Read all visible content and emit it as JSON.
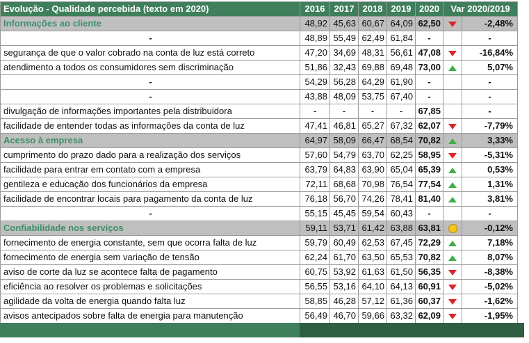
{
  "header": {
    "title": "Evolução - Qualidade percebida (texto em 2020)",
    "years": [
      "2016",
      "2017",
      "2018",
      "2019",
      "2020"
    ],
    "var_label": "Var 2020/2019"
  },
  "rows": [
    {
      "label": "Informações ao cliente",
      "v2016": "48,92",
      "v2017": "45,63",
      "v2018": "60,67",
      "v2019": "64,09",
      "v2020": "62,50",
      "ind": "down",
      "var": "-2,48%",
      "section": true
    },
    {
      "label": "-",
      "v2016": "48,89",
      "v2017": "55,49",
      "v2018": "62,49",
      "v2019": "61,84",
      "v2020": "-",
      "ind": "",
      "var": "-",
      "section": false
    },
    {
      "label": "segurança de que o valor cobrado na conta de luz está correto",
      "v2016": "47,20",
      "v2017": "34,69",
      "v2018": "48,31",
      "v2019": "56,61",
      "v2020": "47,08",
      "ind": "down",
      "var": "-16,84%",
      "section": false
    },
    {
      "label": "atendimento a todos os consumidores sem discriminação",
      "v2016": "51,86",
      "v2017": "32,43",
      "v2018": "69,88",
      "v2019": "69,48",
      "v2020": "73,00",
      "ind": "up",
      "var": "5,07%",
      "section": false
    },
    {
      "label": "-",
      "v2016": "54,29",
      "v2017": "56,28",
      "v2018": "64,29",
      "v2019": "61,90",
      "v2020": "-",
      "ind": "",
      "var": "-",
      "section": false
    },
    {
      "label": "-",
      "v2016": "43,88",
      "v2017": "48,09",
      "v2018": "53,75",
      "v2019": "67,40",
      "v2020": "-",
      "ind": "",
      "var": "-",
      "section": false
    },
    {
      "label": "divulgação de informações importantes pela distribuidora",
      "v2016": "-",
      "v2017": "-",
      "v2018": "-",
      "v2019": "-",
      "v2020": "67,85",
      "ind": "",
      "var": "-",
      "section": false
    },
    {
      "label": "facilidade de entender todas as informações da conta de luz",
      "v2016": "47,41",
      "v2017": "46,81",
      "v2018": "65,27",
      "v2019": "67,32",
      "v2020": "62,07",
      "ind": "down",
      "var": "-7,79%",
      "section": false
    },
    {
      "label": "Acesso à empresa",
      "v2016": "64,97",
      "v2017": "58,09",
      "v2018": "66,47",
      "v2019": "68,54",
      "v2020": "70,82",
      "ind": "up",
      "var": "3,33%",
      "section": true
    },
    {
      "label": "cumprimento do prazo dado para a realização dos serviços",
      "v2016": "57,60",
      "v2017": "54,79",
      "v2018": "63,70",
      "v2019": "62,25",
      "v2020": "58,95",
      "ind": "down",
      "var": "-5,31%",
      "section": false
    },
    {
      "label": "facilidade para entrar em contato com a empresa",
      "v2016": "63,79",
      "v2017": "64,83",
      "v2018": "63,90",
      "v2019": "65,04",
      "v2020": "65,39",
      "ind": "up",
      "var": "0,53%",
      "section": false
    },
    {
      "label": "gentileza e educação dos funcionários da empresa",
      "v2016": "72,11",
      "v2017": "68,68",
      "v2018": "70,98",
      "v2019": "76,54",
      "v2020": "77,54",
      "ind": "up",
      "var": "1,31%",
      "section": false
    },
    {
      "label": "facilidade de encontrar locais para pagamento da conta de luz",
      "v2016": "76,18",
      "v2017": "56,70",
      "v2018": "74,26",
      "v2019": "78,41",
      "v2020": "81,40",
      "ind": "up",
      "var": "3,81%",
      "section": false
    },
    {
      "label": "-",
      "v2016": "55,15",
      "v2017": "45,45",
      "v2018": "59,54",
      "v2019": "60,43",
      "v2020": "-",
      "ind": "",
      "var": "-",
      "section": false
    },
    {
      "label": "Confiabilidade nos serviços",
      "v2016": "59,11",
      "v2017": "53,71",
      "v2018": "61,42",
      "v2019": "63,88",
      "v2020": "63,81",
      "ind": "neutral",
      "var": "-0,12%",
      "section": true
    },
    {
      "label": "fornecimento de energia constante, sem que ocorra falta de luz",
      "v2016": "59,79",
      "v2017": "60,49",
      "v2018": "62,53",
      "v2019": "67,45",
      "v2020": "72,29",
      "ind": "up",
      "var": "7,18%",
      "section": false
    },
    {
      "label": "fornecimento de energia sem variação de tensão",
      "v2016": "62,24",
      "v2017": "61,70",
      "v2018": "63,50",
      "v2019": "65,53",
      "v2020": "70,82",
      "ind": "up",
      "var": "8,07%",
      "section": false
    },
    {
      "label": "aviso de corte da luz se acontece falta de pagamento",
      "v2016": "60,75",
      "v2017": "53,92",
      "v2018": "61,63",
      "v2019": "61,50",
      "v2020": "56,35",
      "ind": "down",
      "var": "-8,38%",
      "section": false
    },
    {
      "label": "eficiência ao resolver os problemas e solicitações",
      "v2016": "56,55",
      "v2017": "53,16",
      "v2018": "64,10",
      "v2019": "64,13",
      "v2020": "60,91",
      "ind": "down",
      "var": "-5,02%",
      "section": false
    },
    {
      "label": "agilidade da volta de energia quando falta luz",
      "v2016": "58,85",
      "v2017": "46,28",
      "v2018": "57,12",
      "v2019": "61,36",
      "v2020": "60,37",
      "ind": "down",
      "var": "-1,62%",
      "section": false
    },
    {
      "label": "avisos antecipados sobre falta de energia para manutenção",
      "v2016": "56,49",
      "v2017": "46,70",
      "v2018": "59,66",
      "v2019": "63,32",
      "v2020": "62,09",
      "ind": "down",
      "var": "-1,95%",
      "section": false
    }
  ]
}
